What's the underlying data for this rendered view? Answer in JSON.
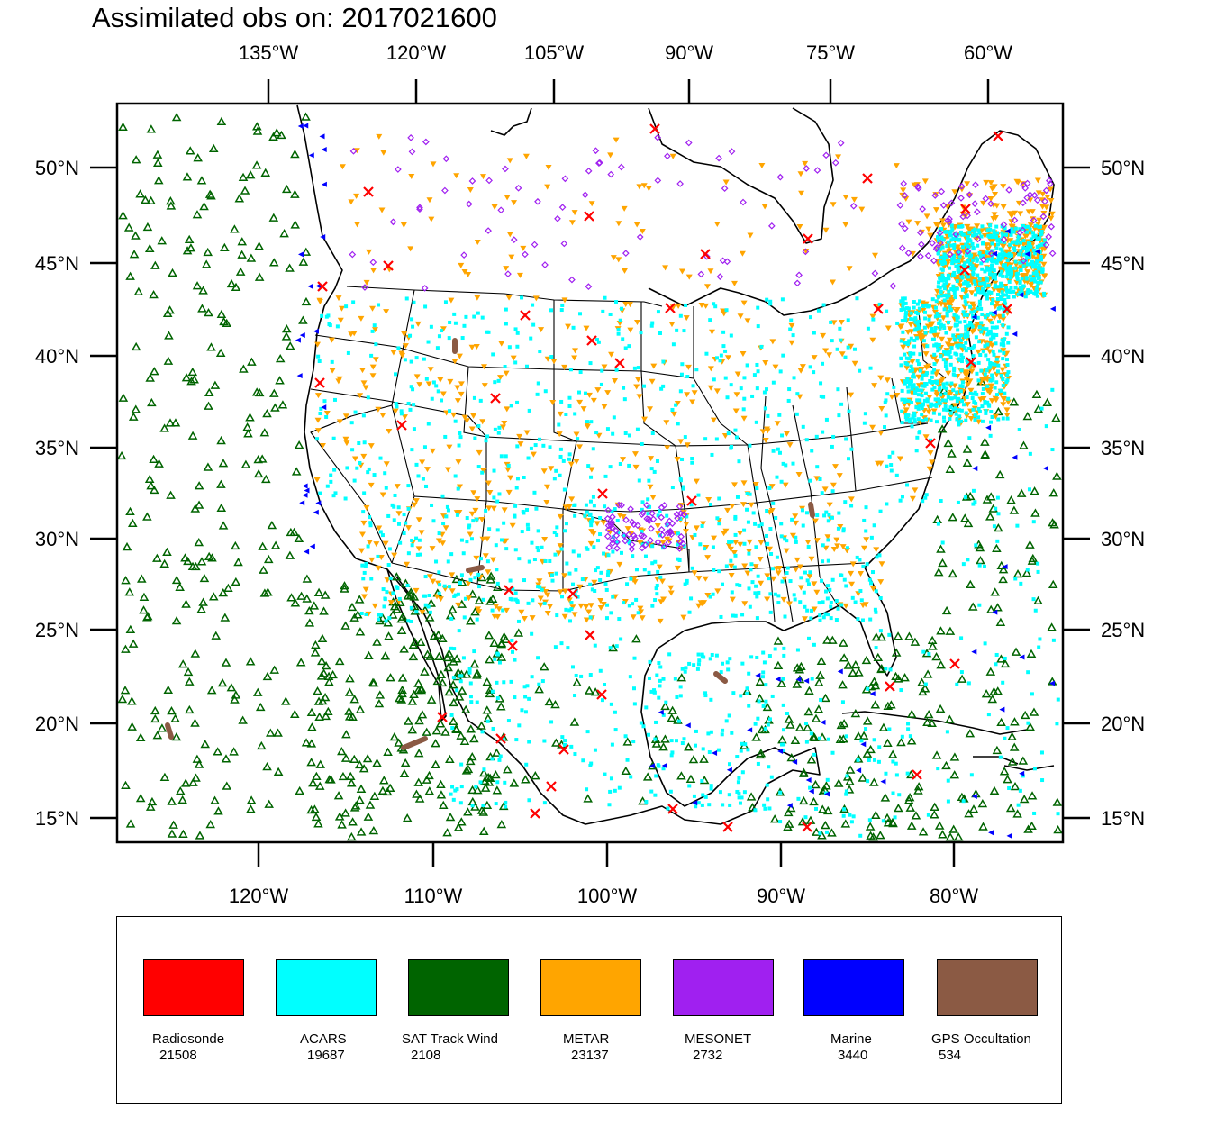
{
  "title": "Assimilated obs on: 2017021600",
  "top_axis_labels": [
    "135°W",
    "120°W",
    "105°W",
    "90°W",
    "75°W",
    "60°W"
  ],
  "bottom_axis_labels": [
    "120°W",
    "110°W",
    "100°W",
    "90°W",
    "80°W"
  ],
  "left_axis_labels": [
    "50°N",
    "45°N",
    "40°N",
    "35°N",
    "30°N",
    "25°N",
    "20°N",
    "15°N"
  ],
  "right_axis_labels": [
    "50°N",
    "45°N",
    "40°N",
    "35°N",
    "30°N",
    "25°N",
    "20°N",
    "15°N"
  ],
  "legend": [
    {
      "name": "Radiosonde",
      "count": "21508",
      "color": "#ff0000"
    },
    {
      "name": "ACARS",
      "count": "19687",
      "color": "#00ffff"
    },
    {
      "name": "SAT Track Wind",
      "count": "2108",
      "color": "#006400"
    },
    {
      "name": "METAR",
      "count": "23137",
      "color": "#ffa500"
    },
    {
      "name": "MESONET",
      "count": "2732",
      "color": "#a020f0"
    },
    {
      "name": "Marine",
      "count": "3440",
      "color": "#0000ff"
    },
    {
      "name": "GPS Occultation",
      "count": "534",
      "color": "#8b5a44"
    }
  ],
  "colors": {
    "radiosonde": "#ff0000",
    "acars": "#00ffff",
    "sat_track_wind": "#006400",
    "metar": "#ffa500",
    "mesonet": "#a020f0",
    "marine": "#0000ff",
    "gps": "#8b5a44"
  }
}
